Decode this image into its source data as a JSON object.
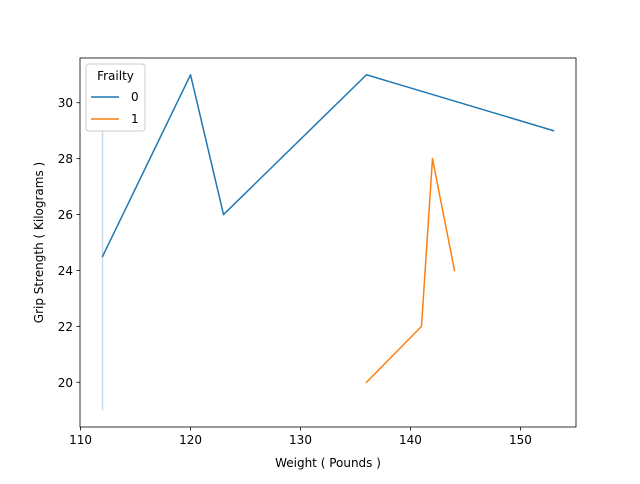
{
  "chart_data": {
    "type": "line",
    "xlabel": "Weight ( Pounds )",
    "ylabel": "Grip Strength ( Kilograms )",
    "xlim": [
      109.95,
      155.05
    ],
    "ylim": [
      18.4,
      31.6
    ],
    "xticks": [
      110,
      120,
      130,
      140,
      150
    ],
    "yticks": [
      20,
      22,
      24,
      26,
      28,
      30
    ],
    "xtick_labels": [
      "110",
      "120",
      "130",
      "140",
      "150"
    ],
    "ytick_labels": [
      "20",
      "22",
      "24",
      26,
      "28",
      "30"
    ],
    "grid": false,
    "legend": {
      "title": "Frailty",
      "placement": "top-left"
    },
    "series": [
      {
        "name": "0",
        "color": "#1f77b4",
        "x": [
          112,
          120,
          123,
          136,
          153
        ],
        "y": [
          24.5,
          31,
          26,
          31,
          29
        ]
      },
      {
        "name": "1",
        "color": "#ff7f0e",
        "x": [
          136,
          141,
          142,
          144
        ],
        "y": [
          20,
          22,
          28,
          24
        ]
      }
    ],
    "error_bars": [
      {
        "series": "0",
        "x": 112,
        "low": 19,
        "high": 29,
        "color": "#1f77b4",
        "opacity": 0.25
      }
    ]
  }
}
